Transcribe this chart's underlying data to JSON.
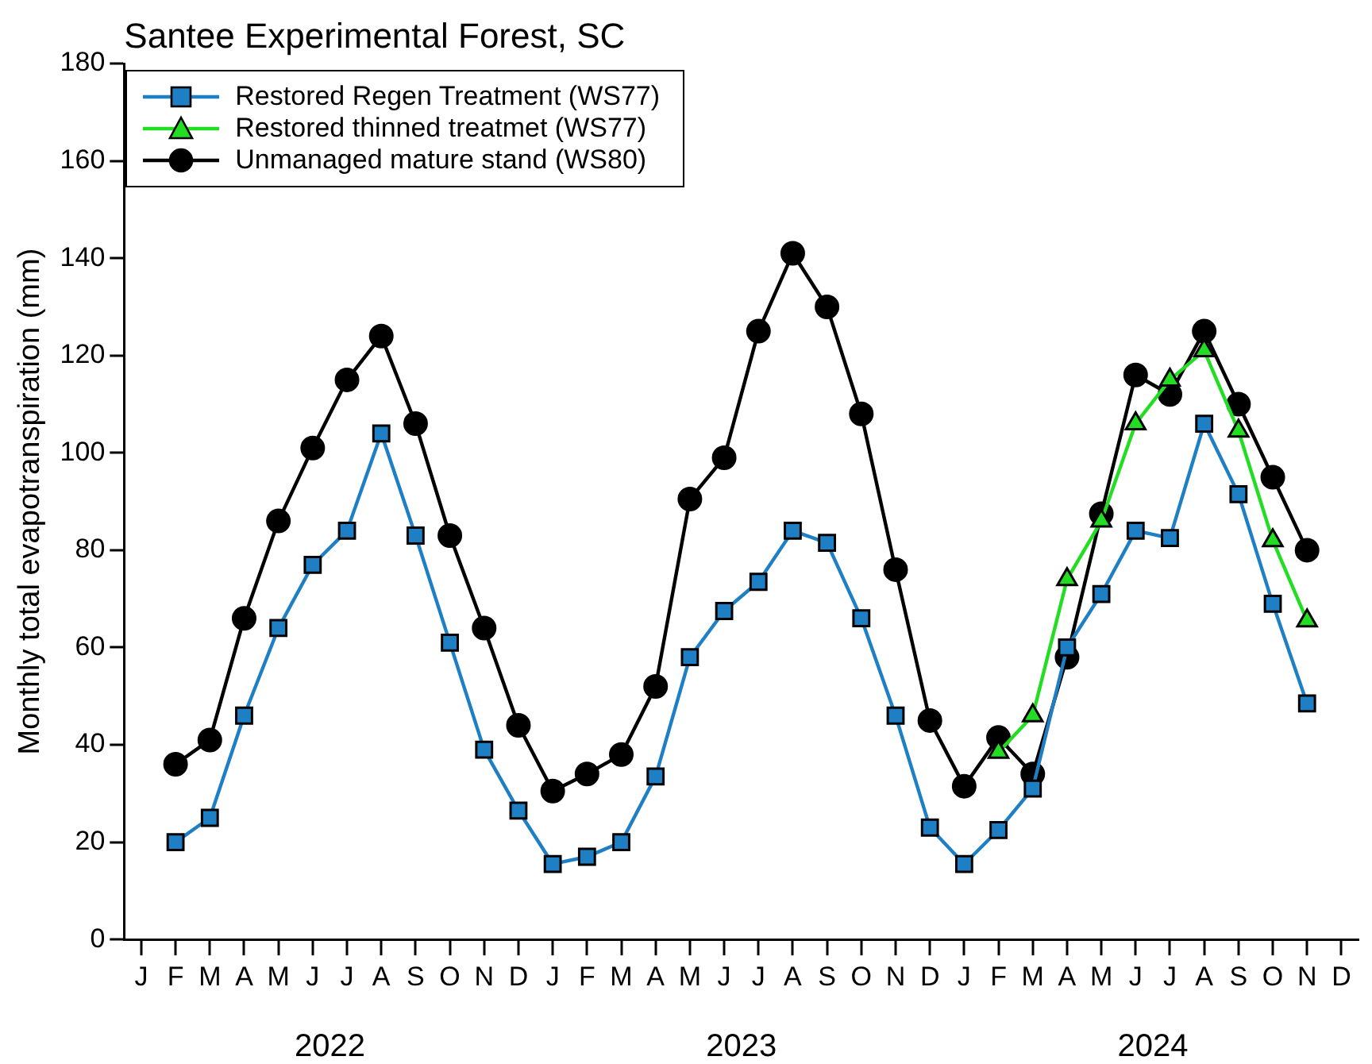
{
  "chart_data": {
    "type": "line",
    "title": "Santee Experimental Forest, SC",
    "ylabel": "Monthly total evapotranspiration (mm)",
    "categories": [
      "J",
      "F",
      "M",
      "A",
      "M",
      "J",
      "J",
      "A",
      "S",
      "O",
      "N",
      "D",
      "J",
      "F",
      "M",
      "A",
      "M",
      "J",
      "J",
      "A",
      "S",
      "O",
      "N",
      "D",
      "J",
      "F",
      "M",
      "A",
      "M",
      "J",
      "J",
      "A",
      "S",
      "O",
      "N",
      "D"
    ],
    "annotations": [
      "2022",
      "2023",
      "2024"
    ],
    "ylim": [
      0,
      180
    ],
    "yticks": [
      0,
      20,
      40,
      60,
      80,
      100,
      120,
      140,
      160,
      180
    ],
    "grid": false,
    "legend": "top left",
    "series": [
      {
        "name": "Restored Regen Treatment (WS77)",
        "color": "#1f7fc4",
        "marker": "square",
        "values": [
          null,
          20,
          25,
          46,
          64,
          77,
          84,
          104,
          83,
          61,
          39,
          26.5,
          15.5,
          17,
          20,
          33.5,
          58,
          67.5,
          73.5,
          84,
          81.5,
          66,
          46,
          23,
          15.5,
          22.5,
          31,
          60,
          71,
          84,
          82.5,
          106,
          91.5,
          69,
          48.5,
          null
        ]
      },
      {
        "name": "Restored thinned treatmet (WS77)",
        "color": "#22dd22",
        "marker": "triangle",
        "values": [
          null,
          null,
          null,
          null,
          null,
          null,
          null,
          null,
          null,
          null,
          null,
          null,
          null,
          null,
          null,
          null,
          null,
          null,
          null,
          null,
          null,
          null,
          null,
          null,
          null,
          38.5,
          46,
          74,
          86,
          106,
          115,
          121,
          104.5,
          82,
          65.5,
          null
        ]
      },
      {
        "name": "Unmanaged mature stand (WS80)",
        "color": "#000000",
        "marker": "circle",
        "values": [
          null,
          36,
          41,
          66,
          86,
          101,
          115,
          124,
          106,
          83,
          64,
          44,
          30.5,
          34,
          38,
          52,
          90.5,
          99,
          125,
          141,
          130,
          108,
          76,
          45,
          31.5,
          41.5,
          34,
          58,
          87.5,
          116,
          112,
          125,
          110,
          95,
          80,
          null
        ]
      }
    ]
  }
}
